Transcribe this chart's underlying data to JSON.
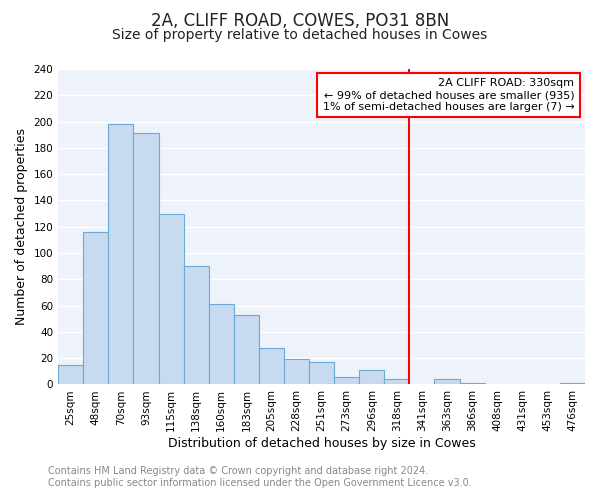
{
  "title": "2A, CLIFF ROAD, COWES, PO31 8BN",
  "subtitle": "Size of property relative to detached houses in Cowes",
  "xlabel": "Distribution of detached houses by size in Cowes",
  "ylabel": "Number of detached properties",
  "bar_labels": [
    "25sqm",
    "48sqm",
    "70sqm",
    "93sqm",
    "115sqm",
    "138sqm",
    "160sqm",
    "183sqm",
    "205sqm",
    "228sqm",
    "251sqm",
    "273sqm",
    "296sqm",
    "318sqm",
    "341sqm",
    "363sqm",
    "386sqm",
    "408sqm",
    "431sqm",
    "453sqm",
    "476sqm"
  ],
  "bar_heights": [
    15,
    116,
    198,
    191,
    130,
    90,
    61,
    53,
    28,
    19,
    17,
    6,
    11,
    4,
    0,
    4,
    1,
    0,
    0,
    0,
    1
  ],
  "bar_color": "#c8daf0",
  "bar_edge_color": "#6aaad4",
  "vline_x": 13.5,
  "vline_color": "red",
  "annotation_title": "2A CLIFF ROAD: 330sqm",
  "annotation_line1": "← 99% of detached houses are smaller (935)",
  "annotation_line2": "1% of semi-detached houses are larger (7) →",
  "ylim": [
    0,
    240
  ],
  "yticks": [
    0,
    20,
    40,
    60,
    80,
    100,
    120,
    140,
    160,
    180,
    200,
    220,
    240
  ],
  "footer_line1": "Contains HM Land Registry data © Crown copyright and database right 2024.",
  "footer_line2": "Contains public sector information licensed under the Open Government Licence v3.0.",
  "fig_background_color": "#ffffff",
  "plot_background_color": "#eef3fb",
  "grid_color": "#ffffff",
  "title_fontsize": 12,
  "subtitle_fontsize": 10,
  "axis_label_fontsize": 9,
  "tick_fontsize": 7.5,
  "footer_fontsize": 7,
  "annotation_fontsize": 8
}
